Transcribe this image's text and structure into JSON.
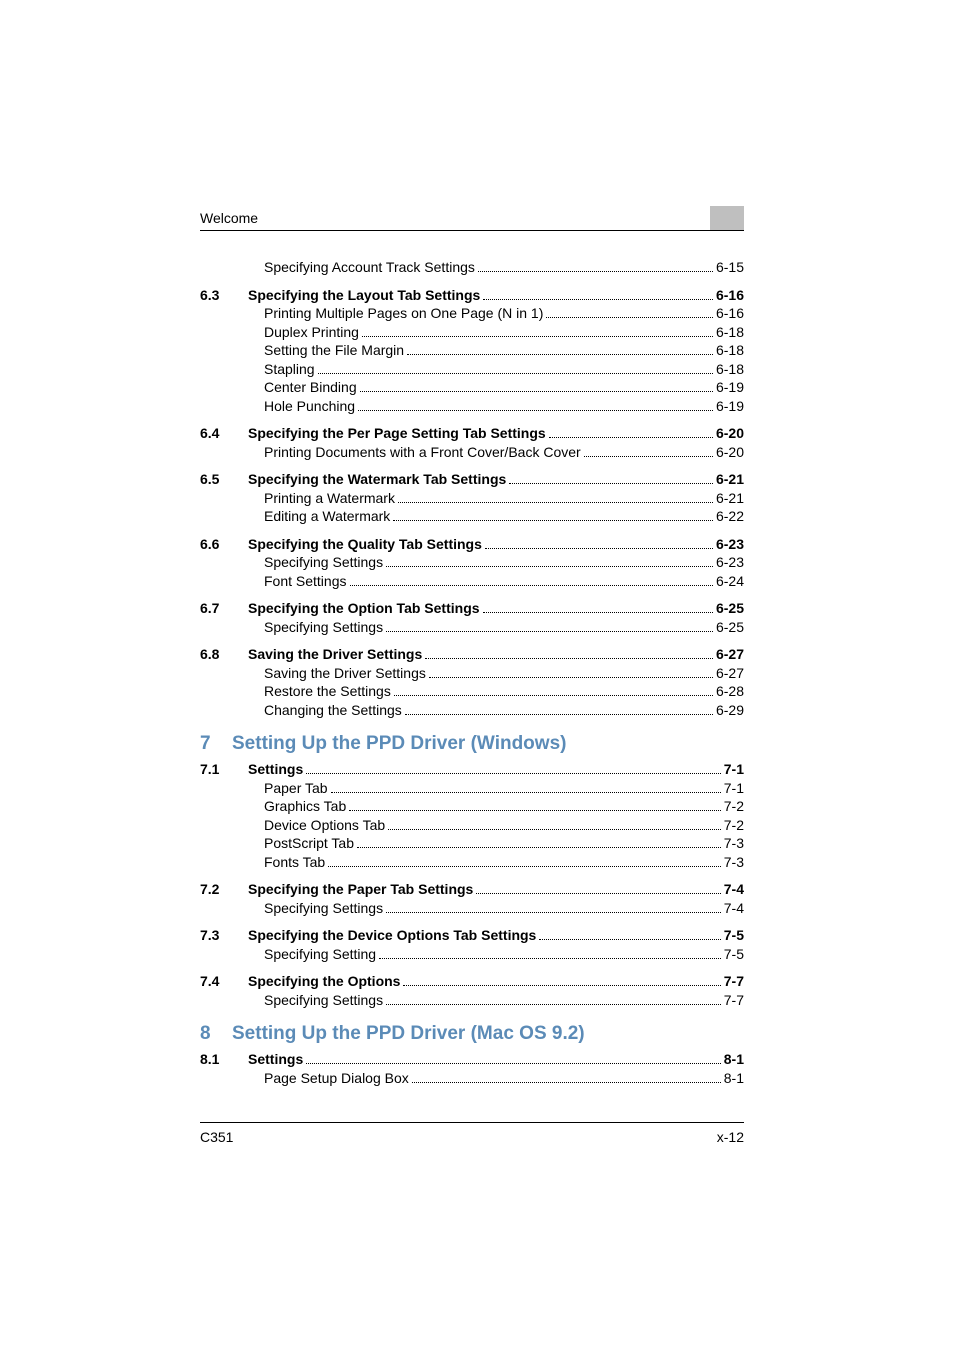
{
  "header": {
    "title": "Welcome"
  },
  "footer": {
    "left": "C351",
    "right": "x-12"
  },
  "toc": [
    {
      "leading_items": [
        {
          "label": "Specifying Account Track Settings",
          "page": "6-15"
        }
      ],
      "sections": [
        {
          "no": "6.3",
          "title": "Specifying the Layout Tab Settings",
          "page": "6-16",
          "items": [
            {
              "label": "Printing Multiple Pages on One Page (N in 1)",
              "page": "6-16"
            },
            {
              "label": "Duplex Printing",
              "page": "6-18"
            },
            {
              "label": "Setting the File Margin",
              "page": "6-18"
            },
            {
              "label": "Stapling",
              "page": "6-18"
            },
            {
              "label": "Center Binding",
              "page": "6-19"
            },
            {
              "label": "Hole Punching",
              "page": "6-19"
            }
          ]
        },
        {
          "no": "6.4",
          "title": "Specifying the Per Page Setting Tab Settings",
          "page": "6-20",
          "items": [
            {
              "label": "Printing Documents with a Front Cover/Back Cover",
              "page": "6-20"
            }
          ]
        },
        {
          "no": "6.5",
          "title": "Specifying the Watermark Tab Settings",
          "page": "6-21",
          "items": [
            {
              "label": "Printing a Watermark",
              "page": "6-21"
            },
            {
              "label": "Editing a Watermark",
              "page": "6-22"
            }
          ]
        },
        {
          "no": "6.6",
          "title": "Specifying the Quality Tab Settings",
          "page": "6-23",
          "items": [
            {
              "label": "Specifying Settings",
              "page": "6-23"
            },
            {
              "label": "Font Settings",
              "page": "6-24"
            }
          ]
        },
        {
          "no": "6.7",
          "title": "Specifying the Option Tab Settings",
          "page": "6-25",
          "items": [
            {
              "label": "Specifying Settings",
              "page": "6-25"
            }
          ]
        },
        {
          "no": "6.8",
          "title": "Saving the Driver Settings",
          "page": "6-27",
          "items": [
            {
              "label": "Saving the Driver Settings",
              "page": "6-27"
            },
            {
              "label": "Restore the Settings",
              "page": "6-28"
            },
            {
              "label": "Changing the Settings",
              "page": "6-29"
            }
          ]
        }
      ]
    },
    {
      "chapter_no": "7",
      "chapter_title": "Setting Up the PPD Driver (Windows)",
      "sections": [
        {
          "no": "7.1",
          "title": "Settings",
          "page": "7-1",
          "items": [
            {
              "label": "Paper Tab",
              "page": "7-1"
            },
            {
              "label": "Graphics Tab",
              "page": "7-2"
            },
            {
              "label": "Device Options Tab",
              "page": "7-2"
            },
            {
              "label": "PostScript Tab",
              "page": "7-3"
            },
            {
              "label": "Fonts Tab",
              "page": "7-3"
            }
          ]
        },
        {
          "no": "7.2",
          "title": "Specifying the Paper Tab Settings",
          "page": "7-4",
          "items": [
            {
              "label": "Specifying Settings",
              "page": "7-4"
            }
          ]
        },
        {
          "no": "7.3",
          "title": "Specifying the Device Options Tab Settings",
          "page": "7-5",
          "items": [
            {
              "label": "Specifying Setting",
              "page": "7-5"
            }
          ]
        },
        {
          "no": "7.4",
          "title": "Specifying the Options",
          "page": "7-7",
          "items": [
            {
              "label": "Specifying Settings",
              "page": "7-7"
            }
          ]
        }
      ]
    },
    {
      "chapter_no": "8",
      "chapter_title": "Setting Up the PPD Driver (Mac OS 9.2)",
      "sections": [
        {
          "no": "8.1",
          "title": "Settings",
          "page": "8-1",
          "items": [
            {
              "label": "Page Setup Dialog Box",
              "page": "8-1"
            }
          ]
        }
      ]
    }
  ]
}
